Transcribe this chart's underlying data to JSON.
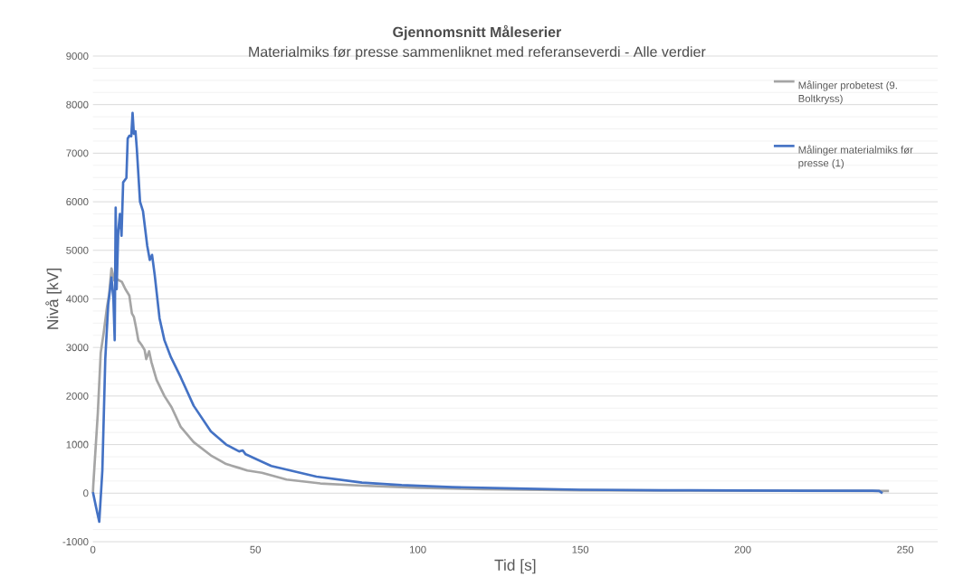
{
  "chart_data": {
    "type": "line",
    "title": "Gjennomsnitt Måleserier",
    "subtitle": "Materialmiks før presse sammenliknet med referanseverdi - Alle verdier",
    "xlabel": "Tid [s]",
    "ylabel": "Nivå [kV]",
    "xlim": [
      0,
      260
    ],
    "xticks": [
      0,
      50,
      100,
      150,
      200,
      250
    ],
    "ylim": [
      -1000,
      9000
    ],
    "yticks": [
      -1000,
      0,
      1000,
      2000,
      3000,
      4000,
      5000,
      6000,
      7000,
      8000,
      9000
    ],
    "grid": "y",
    "legend": "top right",
    "marker": "none",
    "line_style": "solid",
    "series": [
      {
        "name": "Målinger probetest (9. Boltkryss)",
        "color": "#a5a5a5",
        "x": [
          0,
          0.1,
          0.8,
          1.5,
          2.4,
          3.3,
          4.3,
          5.0,
          5.7,
          6.6,
          7.5,
          8.9,
          10.0,
          11.2,
          12.0,
          12.6,
          13.3,
          14.0,
          15.0,
          15.9,
          16.4,
          17.3,
          18.0,
          19.6,
          22.0,
          24.2,
          27.0,
          31.0,
          36.3,
          41.0,
          45.0,
          47.5,
          52.0,
          59.6,
          70.0,
          82.8,
          100.0,
          120.0,
          150.0,
          180.0,
          210.0,
          240.0,
          245.0
        ],
        "values": [
          0,
          155,
          900,
          1645,
          2890,
          3300,
          3820,
          4100,
          4626,
          4380,
          4400,
          4350,
          4200,
          4070,
          3700,
          3630,
          3400,
          3140,
          3050,
          2950,
          2760,
          2920,
          2700,
          2330,
          2000,
          1770,
          1366,
          1050,
          777,
          600,
          520,
          466,
          420,
          280,
          200,
          155,
          110,
          80,
          60,
          55,
          null,
          45,
          45
        ]
      },
      {
        "name": "Målinger materialmiks før presse (1)",
        "color": "#4472c4",
        "x": [
          0,
          1.0,
          1.95,
          2.9,
          3.8,
          4.7,
          5.7,
          6.3,
          6.7,
          7.0,
          7.3,
          7.8,
          8.3,
          8.8,
          9.3,
          10.3,
          10.7,
          11.2,
          11.8,
          12.2,
          12.6,
          13.1,
          13.5,
          14.5,
          15.4,
          16.7,
          17.5,
          18.2,
          19.0,
          20.5,
          22.0,
          24.0,
          27.0,
          31.0,
          36.3,
          41.0,
          45.0,
          46.1,
          47.0,
          54.9,
          68.8,
          82.8,
          95.0,
          110.6,
          130.0,
          150.0,
          175.0,
          200.0,
          220.0,
          240.0,
          242.0,
          243.0
        ],
        "values": [
          20,
          -300,
          -590,
          466,
          2763,
          3880,
          4440,
          4000,
          3150,
          5880,
          4200,
          5400,
          5750,
          5300,
          6400,
          6490,
          7300,
          7360,
          7350,
          7830,
          7400,
          7450,
          7100,
          6000,
          5810,
          5100,
          4800,
          4906,
          4500,
          3600,
          3150,
          2800,
          2390,
          1800,
          1273,
          1000,
          860,
          880,
          800,
          559,
          341,
          218,
          165,
          125,
          95,
          70,
          60,
          55,
          50,
          50,
          45,
          0
        ]
      }
    ]
  }
}
